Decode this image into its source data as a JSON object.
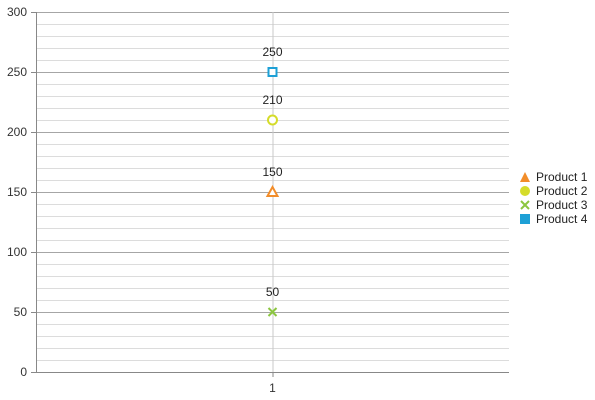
{
  "chart_data": {
    "type": "scatter",
    "title": "",
    "xlabel": "",
    "ylabel": "",
    "categories": [
      "1"
    ],
    "ylim": [
      0,
      300
    ],
    "y_major_ticks": [
      0,
      50,
      100,
      150,
      200,
      250,
      300
    ],
    "y_minor_step": 10,
    "grid": true,
    "legend_position": "right",
    "series": [
      {
        "name": "Product 1",
        "values": [
          150
        ],
        "marker": "triangle",
        "color": "#f28d2a"
      },
      {
        "name": "Product 2",
        "values": [
          210
        ],
        "marker": "circle",
        "color": "#d5dc2a"
      },
      {
        "name": "Product 3",
        "values": [
          50
        ],
        "marker": "x",
        "color": "#8cc63f"
      },
      {
        "name": "Product 4",
        "values": [
          250
        ],
        "marker": "square",
        "color": "#1ea0d6"
      }
    ]
  }
}
